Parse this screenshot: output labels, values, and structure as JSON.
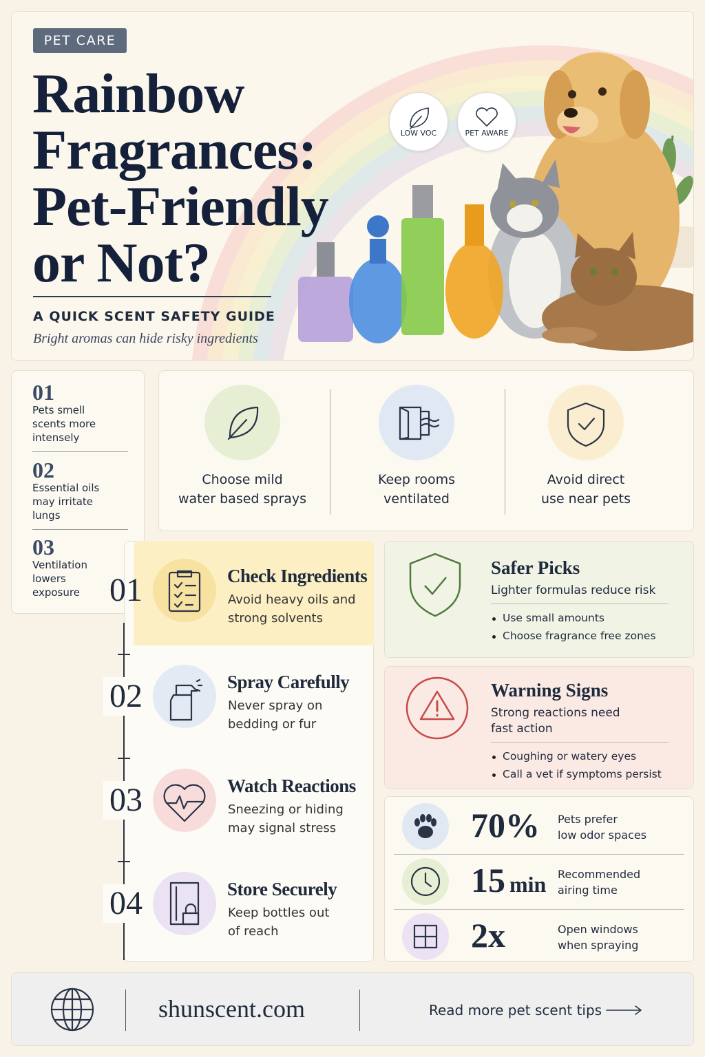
{
  "header": {
    "tag": "PET CARE",
    "title_lines": [
      "Rainbow",
      "Fragrances:",
      "Pet-Friendly",
      "or Not?"
    ],
    "subtitle": "A QUICK SCENT SAFETY GUIDE",
    "tagline": "Bright aromas can hide risky ingredients",
    "badges": [
      "LOW VOC",
      "PET AWARE"
    ]
  },
  "facts": [
    {
      "number": "01",
      "lines": [
        "Pets smell",
        "scents more",
        "intensely"
      ]
    },
    {
      "number": "02",
      "lines": [
        "Essential oils",
        "may irritate",
        "lungs"
      ]
    },
    {
      "number": "03",
      "lines": [
        "Ventilation",
        "lowers",
        "exposure"
      ]
    }
  ],
  "tips": [
    {
      "lines": [
        "Choose mild",
        "water based sprays"
      ]
    },
    {
      "lines": [
        "Keep rooms",
        "ventilated"
      ]
    },
    {
      "lines": [
        "Avoid direct",
        "use near pets"
      ]
    }
  ],
  "steps": [
    {
      "number": "01",
      "title": "Check Ingredients",
      "lines": [
        "Avoid heavy oils and",
        "strong solvents"
      ]
    },
    {
      "number": "02",
      "title": "Spray Carefully",
      "lines": [
        "Never spray on",
        "bedding or fur"
      ]
    },
    {
      "number": "03",
      "title": "Watch Reactions",
      "lines": [
        "Sneezing or hiding",
        "may signal stress"
      ]
    },
    {
      "number": "04",
      "title": "Store Securely",
      "lines": [
        "Keep bottles out",
        "of reach"
      ]
    }
  ],
  "safer_picks": {
    "title": "Safer Picks",
    "subtitle_lines": [
      "Lighter formulas reduce risk"
    ],
    "bullets": [
      "Use small amounts",
      "Choose fragrance free zones"
    ]
  },
  "warning_signs": {
    "title": "Warning Signs",
    "subtitle_lines": [
      "Strong reactions need",
      "fast action"
    ],
    "bullets": [
      "Coughing or watery eyes",
      "Call a vet if symptoms persist"
    ]
  },
  "stats": [
    {
      "value": "70%",
      "lines": [
        "Pets prefer",
        "low odor spaces"
      ]
    },
    {
      "value": "15",
      "unit": "min",
      "lines": [
        "Recommended",
        "airing time"
      ]
    },
    {
      "value": "2x",
      "lines": [
        "Open windows",
        "when spraying"
      ]
    }
  ],
  "footer": {
    "site": "shunscent.com",
    "link": "Read more pet scent tips"
  }
}
